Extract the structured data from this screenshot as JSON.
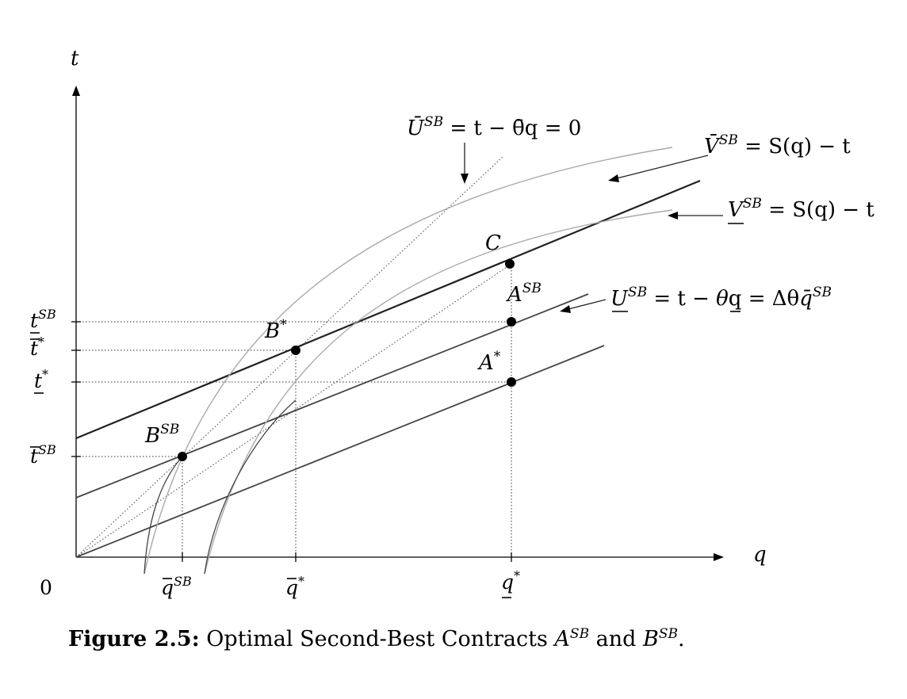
{
  "axes": {
    "y_label": "t",
    "x_label": "q",
    "origin_label": "0"
  },
  "y_ticks": [
    {
      "base": "t",
      "sup": "SB",
      "mark": "underbar"
    },
    {
      "base": "t",
      "sup": "*",
      "mark": "overbar"
    },
    {
      "base": "t",
      "sup": "*",
      "mark": "underbar"
    },
    {
      "base": "t",
      "sup": "SB",
      "mark": "overbar"
    }
  ],
  "x_ticks": [
    {
      "base": "q",
      "sup": "SB",
      "mark": "overbar"
    },
    {
      "base": "q",
      "sup": "*",
      "mark": "overbar"
    },
    {
      "base": "q",
      "sup": "*",
      "mark": "underbar"
    }
  ],
  "points": {
    "C": {
      "base": "C",
      "sup": ""
    },
    "A_SB": {
      "base": "A",
      "sup": "SB"
    },
    "A_star": {
      "base": "A",
      "sup": "*"
    },
    "B_star": {
      "base": "B",
      "sup": "*"
    },
    "B_SB": {
      "base": "B",
      "sup": "SB"
    }
  },
  "annotations": {
    "U_bar": {
      "left": "Ū",
      "sup": "SB",
      "right": " = t − θ̄q = 0"
    },
    "V_bar": {
      "left": "V̄",
      "sup": "SB",
      "right": " = S(q) − t"
    },
    "V_under": {
      "left": "V",
      "sup": "SB",
      "right": " = S(q) − t"
    },
    "U_under": {
      "left": "U",
      "sup": "SB",
      "right_a": " = t − ",
      "theta": "θ",
      "right_b": "q = Δθ",
      "qbar": "q̄",
      "sup2": "SB"
    }
  },
  "caption": {
    "label": "Figure 2.5:",
    "text": " Optimal Second-Best Contracts ",
    "a_base": "A",
    "a_sup": "SB",
    "conj": " and ",
    "b_base": "B",
    "b_sup": "SB",
    "end": "."
  }
}
